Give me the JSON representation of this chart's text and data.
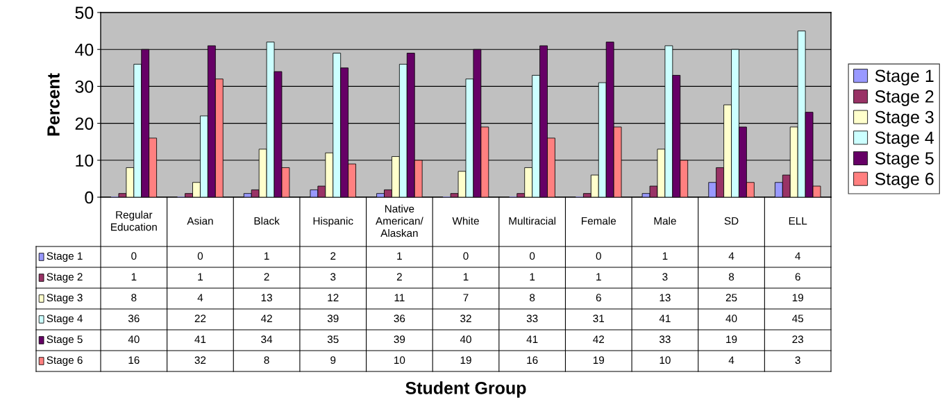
{
  "chart_data": {
    "type": "bar",
    "annotations": [
      "Student Group"
    ],
    "ylabel": "Percent",
    "categories": [
      "Regular\nEducation",
      "Asian",
      "Black",
      "Hispanic",
      "Native\nAmerican/\nAlaskan",
      "White",
      "Multiracial",
      "Female",
      "Male",
      "SD",
      "ELL"
    ],
    "series": [
      {
        "name": "Stage 1",
        "color": "#9999ff",
        "values": [
          0,
          0,
          1,
          2,
          1,
          0,
          0,
          0,
          1,
          4,
          4
        ]
      },
      {
        "name": "Stage 2",
        "color": "#993366",
        "values": [
          1,
          1,
          2,
          3,
          2,
          1,
          1,
          1,
          3,
          8,
          6
        ]
      },
      {
        "name": "Stage 3",
        "color": "#ffffcc",
        "values": [
          8,
          4,
          13,
          12,
          11,
          7,
          8,
          6,
          13,
          25,
          19
        ]
      },
      {
        "name": "Stage 4",
        "color": "#ccffff",
        "values": [
          36,
          22,
          42,
          39,
          36,
          32,
          33,
          31,
          41,
          40,
          45
        ]
      },
      {
        "name": "Stage 5",
        "color": "#660066",
        "values": [
          40,
          41,
          34,
          35,
          39,
          40,
          41,
          42,
          33,
          19,
          23
        ]
      },
      {
        "name": "Stage 6",
        "color": "#ff8080",
        "values": [
          16,
          32,
          8,
          9,
          10,
          19,
          16,
          19,
          10,
          4,
          3
        ]
      }
    ],
    "ylim": [
      0,
      50
    ],
    "yticks": [
      0,
      10,
      20,
      30,
      40,
      50
    ],
    "grid": "y",
    "legend": "right",
    "data_labels": true
  }
}
